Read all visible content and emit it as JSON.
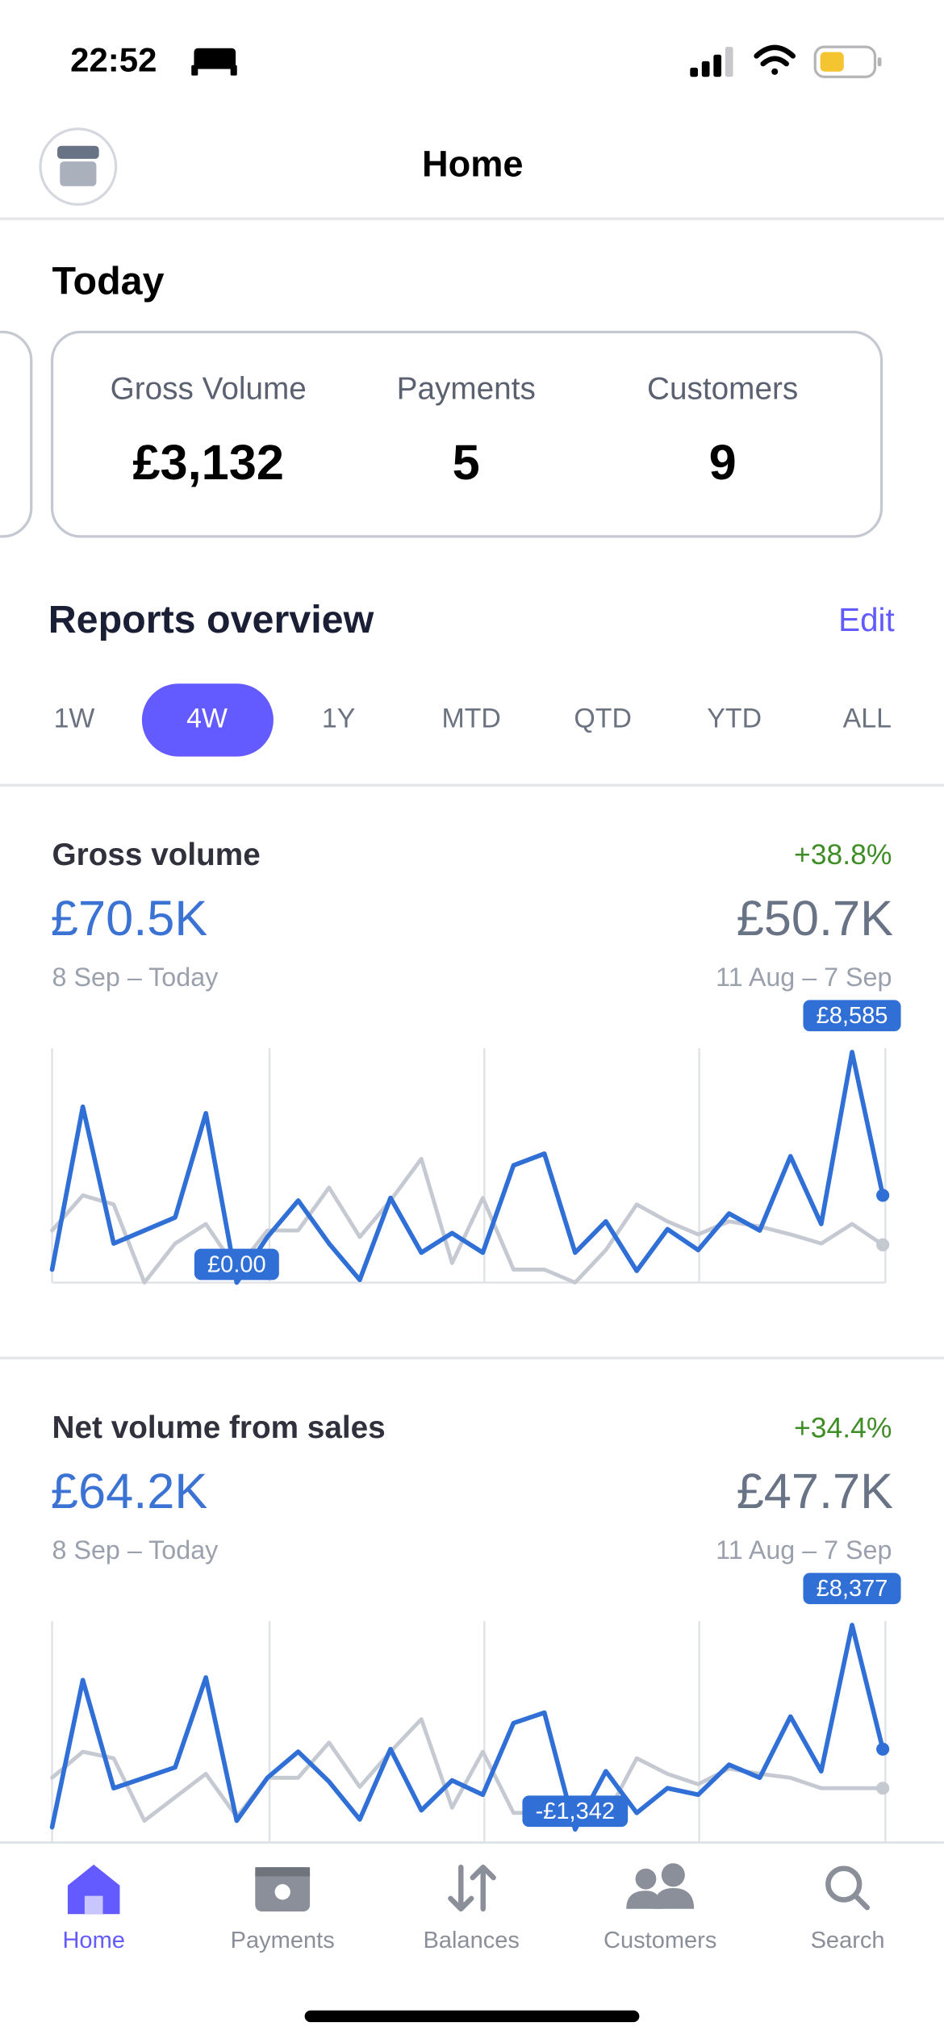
{
  "status_bar": {
    "time": "22:52"
  },
  "header": {
    "title": "Home"
  },
  "today": {
    "title": "Today",
    "stats": [
      {
        "label": "Gross Volume",
        "value": "£3,132"
      },
      {
        "label": "Payments",
        "value": 5
      },
      {
        "label": "Customers",
        "value": 9
      }
    ]
  },
  "reports": {
    "title": "Reports overview",
    "edit": "Edit",
    "ranges": [
      "1W",
      "4W",
      "1Y",
      "MTD",
      "QTD",
      "YTD",
      "ALL"
    ],
    "selected": "4W"
  },
  "chart_data": [
    {
      "type": "line",
      "title": "Gross volume",
      "change": "+38.8%",
      "current": "£70.5K",
      "previous": "£50.7K",
      "current_period": "8 Sep – Today",
      "previous_period": "11 Aug – 7 Sep",
      "series": [
        {
          "color": "#2f6fd6",
          "values": [
            485,
            6548,
            1455,
            1940,
            2425,
            6305,
            0,
            1698,
            3056,
            1455,
            100,
            3153,
            1116,
            1843,
            1116,
            4365,
            4802,
            1116,
            2280,
            437,
            1989,
            1213,
            2571,
            1940,
            4705,
            2183,
            8585,
            3250
          ],
          "value_labels": [
            null,
            null,
            null,
            null,
            null,
            null,
            "£0.00",
            null,
            null,
            null,
            null,
            null,
            null,
            null,
            null,
            null,
            null,
            null,
            null,
            null,
            null,
            null,
            null,
            null,
            null,
            null,
            "£8,585",
            null
          ]
        },
        {
          "color": "#c5c9d1",
          "values": [
            1940,
            3250,
            2910,
            0,
            1455,
            2183,
            485,
            1940,
            1940,
            3541,
            1698,
            3056,
            4608,
            728,
            3153,
            485,
            485,
            0,
            1213,
            2910,
            2280,
            1795,
            2280,
            2086,
            1795,
            1455,
            2183,
            1407
          ]
        }
      ]
    },
    {
      "type": "line",
      "title": "Net volume from sales",
      "change": "+34.4%",
      "current": "£64.2K",
      "previous": "£47.7K",
      "current_period": "8 Sep – Today",
      "previous_period": "11 Aug – 7 Sep",
      "series": [
        {
          "color": "#2f6fd6",
          "values": [
            -1238,
            5757,
            619,
            1114,
            1609,
            5881,
            -929,
            1114,
            2352,
            929,
            -867,
            2476,
            -433,
            990,
            310,
            3714,
            4209,
            -1342,
            1424,
            -557,
            619,
            310,
            1733,
            1114,
            4024,
            1424,
            8377,
            2476
          ],
          "value_labels": [
            null,
            null,
            null,
            null,
            null,
            null,
            null,
            null,
            null,
            null,
            null,
            null,
            null,
            null,
            null,
            null,
            null,
            "-£1,342",
            null,
            null,
            null,
            null,
            null,
            null,
            null,
            null,
            "£8,377",
            null
          ]
        },
        {
          "color": "#c5c9d1",
          "values": [
            1114,
            2352,
            2043,
            -929,
            186,
            1300,
            -743,
            1114,
            1114,
            2786,
            681,
            2352,
            3900,
            -310,
            2352,
            -557,
            -557,
            -929,
            -743,
            2043,
            1300,
            805,
            1548,
            1300,
            1114,
            619,
            619,
            619
          ]
        }
      ]
    }
  ],
  "tab_bar": {
    "items": [
      "Home",
      "Payments",
      "Balances",
      "Customers",
      "Search"
    ],
    "active": "Home"
  }
}
